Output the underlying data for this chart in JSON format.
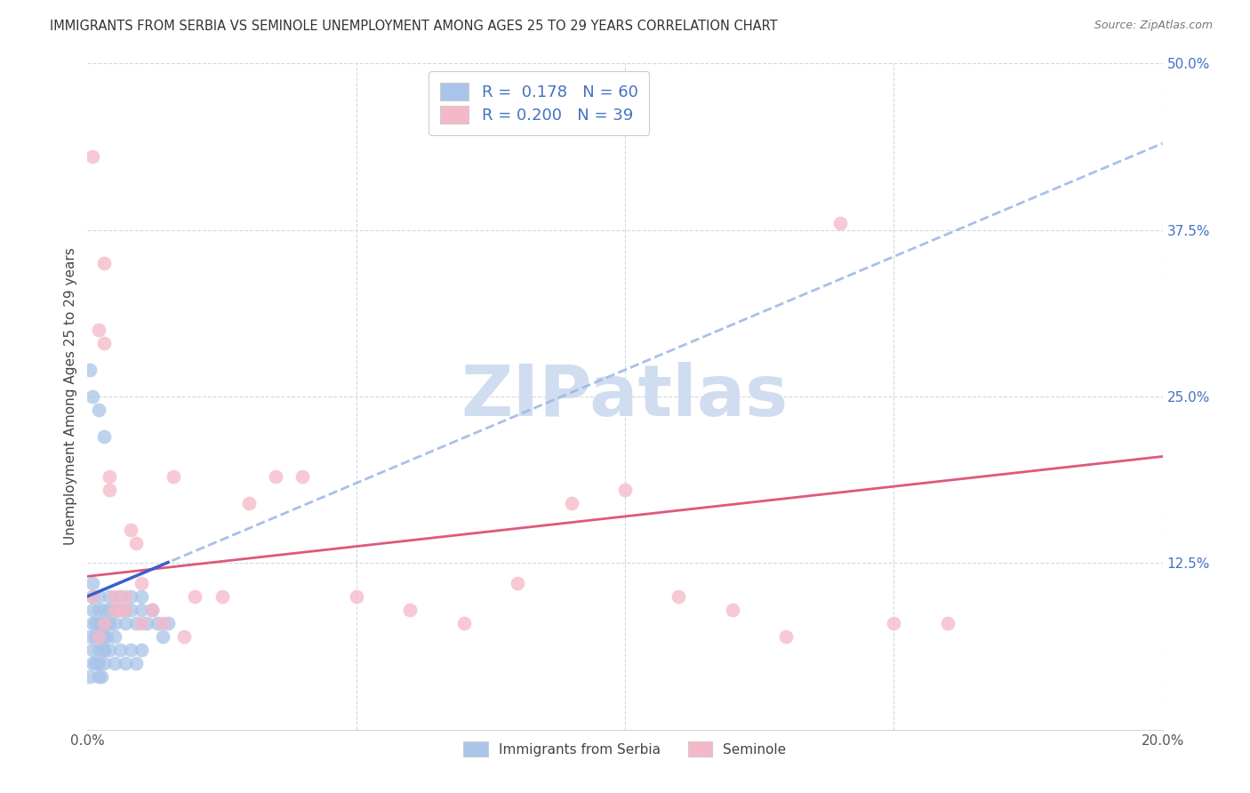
{
  "title": "IMMIGRANTS FROM SERBIA VS SEMINOLE UNEMPLOYMENT AMONG AGES 25 TO 29 YEARS CORRELATION CHART",
  "source": "Source: ZipAtlas.com",
  "ylabel": "Unemployment Among Ages 25 to 29 years",
  "xlim": [
    0,
    0.2
  ],
  "ylim": [
    0,
    0.5
  ],
  "xticks": [
    0.0,
    0.05,
    0.1,
    0.15,
    0.2
  ],
  "xticklabels": [
    "0.0%",
    "",
    "",
    "",
    "20.0%"
  ],
  "yticks_right": [
    0.0,
    0.125,
    0.25,
    0.375,
    0.5
  ],
  "yticklabels_right": [
    "",
    "12.5%",
    "25.0%",
    "37.5%",
    "50.0%"
  ],
  "legend1_r": "0.178",
  "legend1_n": "60",
  "legend2_r": "0.200",
  "legend2_n": "39",
  "legend_label1": "Immigrants from Serbia",
  "legend_label2": "Seminole",
  "blue_scatter_color": "#a8c4e8",
  "pink_scatter_color": "#f5b8c8",
  "blue_dash_line_color": "#a0b8e8",
  "blue_solid_line_color": "#3a5fcd",
  "pink_line_color": "#e05878",
  "r_n_color": "#4472c4",
  "grid_color": "#d0d8e8",
  "background_color": "#ffffff",
  "watermark_text": "ZIPatlas",
  "watermark_color": "#d0ddf0",
  "blue_trend_x0": 0.0,
  "blue_trend_y0": 0.1,
  "blue_trend_x1": 0.2,
  "blue_trend_y1": 0.44,
  "pink_trend_x0": 0.0,
  "pink_trend_y0": 0.115,
  "pink_trend_x1": 0.2,
  "pink_trend_y1": 0.205,
  "serbia_x": [
    0.0005,
    0.001,
    0.001,
    0.001,
    0.001,
    0.0015,
    0.0015,
    0.002,
    0.002,
    0.002,
    0.002,
    0.002,
    0.0025,
    0.0025,
    0.003,
    0.003,
    0.003,
    0.003,
    0.0035,
    0.0035,
    0.004,
    0.004,
    0.004,
    0.005,
    0.005,
    0.005,
    0.006,
    0.006,
    0.007,
    0.007,
    0.008,
    0.008,
    0.009,
    0.01,
    0.01,
    0.011,
    0.012,
    0.013,
    0.014,
    0.015,
    0.0005,
    0.001,
    0.001,
    0.0015,
    0.002,
    0.002,
    0.0025,
    0.003,
    0.003,
    0.004,
    0.005,
    0.006,
    0.007,
    0.008,
    0.009,
    0.01,
    0.0005,
    0.001,
    0.002,
    0.003
  ],
  "serbia_y": [
    0.07,
    0.08,
    0.09,
    0.1,
    0.11,
    0.07,
    0.08,
    0.06,
    0.07,
    0.08,
    0.09,
    0.1,
    0.07,
    0.08,
    0.06,
    0.07,
    0.08,
    0.09,
    0.07,
    0.08,
    0.08,
    0.09,
    0.1,
    0.07,
    0.08,
    0.09,
    0.09,
    0.1,
    0.08,
    0.09,
    0.09,
    0.1,
    0.08,
    0.09,
    0.1,
    0.08,
    0.09,
    0.08,
    0.07,
    0.08,
    0.04,
    0.05,
    0.06,
    0.05,
    0.04,
    0.05,
    0.04,
    0.05,
    0.06,
    0.06,
    0.05,
    0.06,
    0.05,
    0.06,
    0.05,
    0.06,
    0.27,
    0.25,
    0.24,
    0.22
  ],
  "seminole_x": [
    0.001,
    0.002,
    0.003,
    0.003,
    0.004,
    0.005,
    0.006,
    0.007,
    0.008,
    0.009,
    0.01,
    0.012,
    0.014,
    0.016,
    0.018,
    0.02,
    0.025,
    0.03,
    0.035,
    0.04,
    0.05,
    0.06,
    0.07,
    0.08,
    0.09,
    0.1,
    0.11,
    0.12,
    0.13,
    0.14,
    0.15,
    0.16,
    0.001,
    0.002,
    0.003,
    0.004,
    0.005,
    0.007,
    0.01
  ],
  "seminole_y": [
    0.43,
    0.3,
    0.35,
    0.29,
    0.19,
    0.09,
    0.09,
    0.1,
    0.15,
    0.14,
    0.08,
    0.09,
    0.08,
    0.19,
    0.07,
    0.1,
    0.1,
    0.17,
    0.19,
    0.19,
    0.1,
    0.09,
    0.08,
    0.11,
    0.17,
    0.18,
    0.1,
    0.09,
    0.07,
    0.38,
    0.08,
    0.08,
    0.1,
    0.07,
    0.08,
    0.18,
    0.1,
    0.09,
    0.11
  ]
}
